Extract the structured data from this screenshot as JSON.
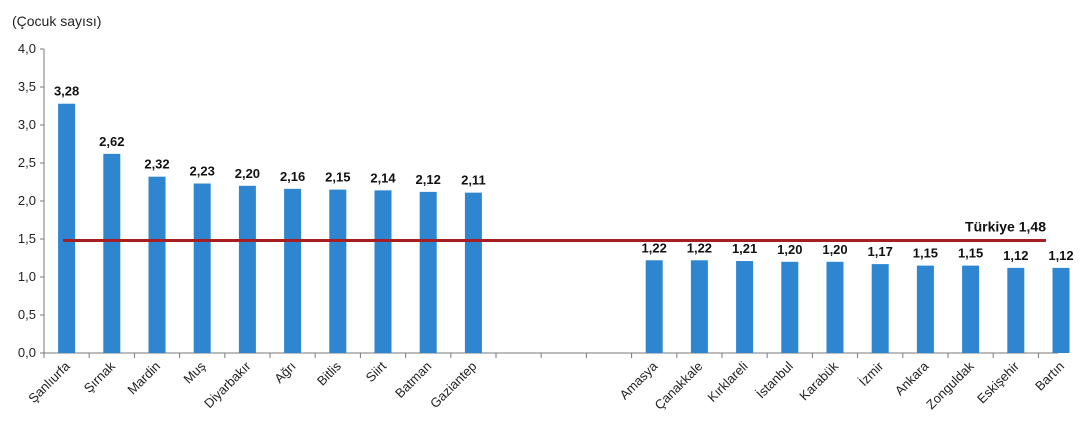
{
  "chart_data": {
    "type": "bar",
    "ylabel": "(Çocuk sayısı)",
    "ylim": [
      0,
      4
    ],
    "yticks": [
      "0,0",
      "0,5",
      "1,0",
      "1,5",
      "2,0",
      "2,5",
      "3,0",
      "3,5",
      "4,0"
    ],
    "grid": false,
    "bar_color": "#2E86D1",
    "reference_line": {
      "label": "Türkiye",
      "value": 1.48,
      "value_label": "1,48",
      "color": "#A61E22"
    },
    "groups": [
      {
        "categories": [
          "Şanlıurfa",
          "Şırnak",
          "Mardin",
          "Muş",
          "Diyarbakır",
          "Ağrı",
          "Bitlis",
          "Siirt",
          "Batman",
          "Gaziantep"
        ],
        "values": [
          3.28,
          2.62,
          2.32,
          2.23,
          2.2,
          2.16,
          2.15,
          2.14,
          2.12,
          2.11
        ],
        "value_labels": [
          "3,28",
          "2,62",
          "2,32",
          "2,23",
          "2,20",
          "2,16",
          "2,15",
          "2,14",
          "2,12",
          "2,11"
        ]
      },
      {
        "categories": [
          "Amasya",
          "Çanakkale",
          "Kırklareli",
          "İstanbul",
          "Karabük",
          "İzmir",
          "Ankara",
          "Zonguldak",
          "Eskişehir",
          "Bartın"
        ],
        "values": [
          1.22,
          1.22,
          1.21,
          1.2,
          1.2,
          1.17,
          1.15,
          1.15,
          1.12,
          1.12
        ],
        "value_labels": [
          "1,22",
          "1,22",
          "1,21",
          "1,20",
          "1,20",
          "1,17",
          "1,15",
          "1,15",
          "1,12",
          "1,12"
        ]
      }
    ]
  }
}
